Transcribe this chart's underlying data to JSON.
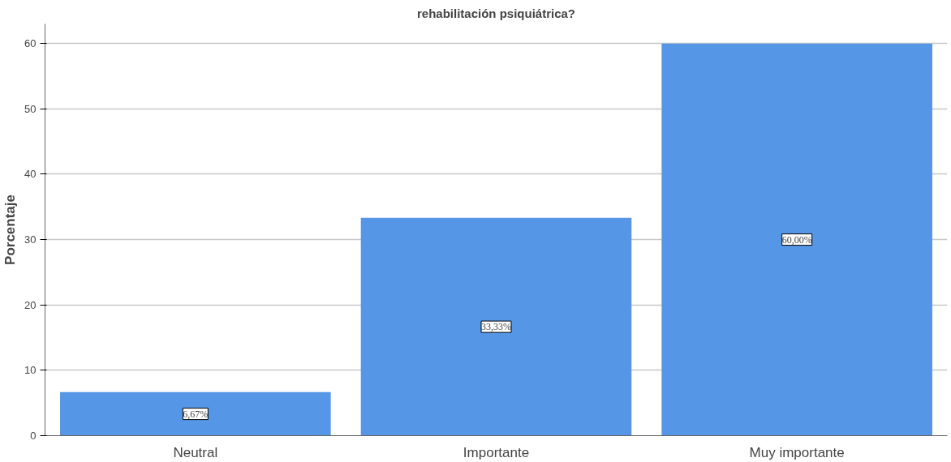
{
  "chart_data": {
    "type": "bar",
    "title": "rehabilitación psiquiátrica?",
    "ylabel": "Porcentaje",
    "categories": [
      "Neutral",
      "Importante",
      "Muy importante"
    ],
    "values": [
      6.67,
      33.33,
      60.0
    ],
    "value_labels": [
      "6,67%",
      "33,33%",
      "60,00%"
    ],
    "color": "#5596e6",
    "ylim": [
      0,
      63
    ],
    "yticks": [
      0,
      10,
      20,
      30,
      40,
      50,
      60
    ],
    "grid": "y"
  }
}
